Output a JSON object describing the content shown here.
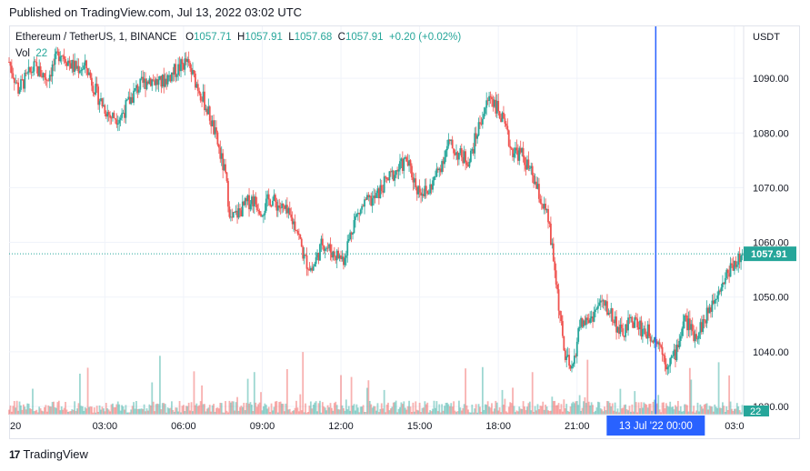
{
  "header": {
    "published": "Published on TradingView.com, Jul 13, 2022 03:02 UTC"
  },
  "legend": {
    "symbol": "Ethereum / TetherUS, 1, BINANCE",
    "open_label": "O",
    "open": "1057.71",
    "high_label": "H",
    "high": "1057.91",
    "low_label": "L",
    "low": "1057.68",
    "close_label": "C",
    "close": "1057.91",
    "change": "+0.20 (+0.02%)",
    "volume_label": "Vol",
    "volume": "22"
  },
  "footer": {
    "brand": "TradingView",
    "logo": "17"
  },
  "colors": {
    "up": "#26a69a",
    "down": "#ef5350",
    "crosshair": "#2962ff",
    "grid": "#f0f3fa",
    "axis_text": "#131722"
  },
  "chart_data": {
    "type": "candlestick",
    "currency_label": "USDT",
    "last_price": "1057.91",
    "volume_badge": "22",
    "y_ticks": [
      1090.0,
      1080.0,
      1070.0,
      1060.0,
      1050.0,
      1040.0,
      1030.0
    ],
    "y_tick_labels": [
      "1090.00",
      "1080.00",
      "1070.00",
      "1060.00",
      "1050.00",
      "1040.00",
      "1030.00"
    ],
    "ylim": [
      1028.5,
      1099.5
    ],
    "x_tick_labels": [
      "20",
      "03:00",
      "06:00",
      "09:00",
      "12:00",
      "15:00",
      "18:00",
      "21:00",
      "03:0"
    ],
    "x_tick_hours": [
      -0.67,
      3,
      6,
      9,
      12,
      15,
      18,
      21,
      27
    ],
    "x_range_hours": [
      -0.65,
      27.35
    ],
    "crosshair_label": "13 Jul '22   00:00",
    "crosshair_hour": 24,
    "grid": true,
    "price_path": [
      [
        -0.65,
        1093
      ],
      [
        -0.3,
        1088
      ],
      [
        0.3,
        1092
      ],
      [
        0.8,
        1090
      ],
      [
        1.3,
        1095
      ],
      [
        1.8,
        1092
      ],
      [
        2.3,
        1092
      ],
      [
        2.7,
        1087
      ],
      [
        3.2,
        1083
      ],
      [
        3.6,
        1083
      ],
      [
        4.2,
        1088
      ],
      [
        4.7,
        1090
      ],
      [
        5.1,
        1089
      ],
      [
        5.6,
        1091
      ],
      [
        6.1,
        1093
      ],
      [
        6.6,
        1088
      ],
      [
        7.0,
        1083
      ],
      [
        7.3,
        1078
      ],
      [
        7.6,
        1072
      ],
      [
        7.8,
        1064
      ],
      [
        8.2,
        1066
      ],
      [
        8.6,
        1068
      ],
      [
        9.0,
        1066
      ],
      [
        9.3,
        1068
      ],
      [
        9.8,
        1066
      ],
      [
        10.3,
        1063
      ],
      [
        10.6,
        1057
      ],
      [
        10.9,
        1055
      ],
      [
        11.3,
        1060
      ],
      [
        11.7,
        1058
      ],
      [
        12.1,
        1057
      ],
      [
        12.5,
        1064
      ],
      [
        12.9,
        1067
      ],
      [
        13.3,
        1068
      ],
      [
        13.7,
        1071
      ],
      [
        14.1,
        1073
      ],
      [
        14.5,
        1075
      ],
      [
        14.9,
        1070
      ],
      [
        15.3,
        1069
      ],
      [
        15.7,
        1073
      ],
      [
        16.1,
        1078
      ],
      [
        16.5,
        1076
      ],
      [
        16.9,
        1075
      ],
      [
        17.3,
        1082
      ],
      [
        17.7,
        1087
      ],
      [
        18.1,
        1083
      ],
      [
        18.5,
        1077
      ],
      [
        18.9,
        1076
      ],
      [
        19.3,
        1072
      ],
      [
        19.6,
        1068
      ],
      [
        19.9,
        1064
      ],
      [
        20.2,
        1053
      ],
      [
        20.5,
        1040
      ],
      [
        20.8,
        1036
      ],
      [
        21.1,
        1045
      ],
      [
        21.5,
        1046
      ],
      [
        21.9,
        1049
      ],
      [
        22.3,
        1047
      ],
      [
        22.7,
        1043
      ],
      [
        23.1,
        1046
      ],
      [
        23.5,
        1044
      ],
      [
        23.9,
        1043
      ],
      [
        24.1,
        1042
      ],
      [
        24.4,
        1038
      ],
      [
        24.7,
        1039
      ],
      [
        25.1,
        1046
      ],
      [
        25.5,
        1043
      ],
      [
        25.9,
        1046
      ],
      [
        26.3,
        1051
      ],
      [
        26.6,
        1053
      ],
      [
        26.9,
        1056
      ],
      [
        27.2,
        1057
      ],
      [
        27.35,
        1057.91
      ]
    ],
    "volume_ylim": [
      0,
      100
    ]
  }
}
